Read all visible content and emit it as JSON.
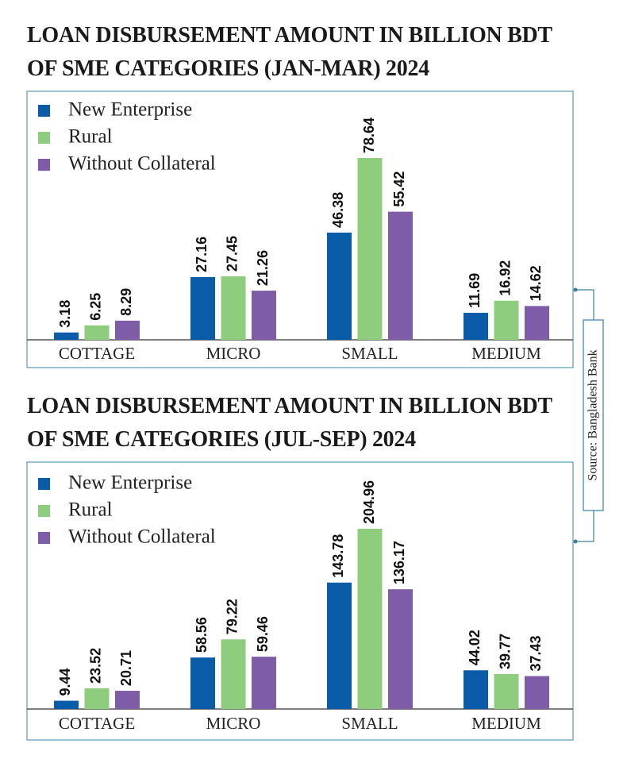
{
  "chart_data": [
    {
      "type": "bar",
      "title": "LOAN DISBURSEMENT AMOUNT IN BILLION BDT OF SME CATEGORIES (JAN-MAR) 2024",
      "categories": [
        "COTTAGE",
        "MICRO",
        "SMALL",
        "MEDIUM"
      ],
      "series": [
        {
          "name": "New Enterprise",
          "color": "#0b5ca8",
          "values": [
            3.18,
            27.16,
            46.38,
            11.69
          ]
        },
        {
          "name": "Rural",
          "color": "#8fcd7e",
          "values": [
            6.25,
            27.45,
            78.64,
            16.92
          ]
        },
        {
          "name": "Without Collateral",
          "color": "#7f5ca8",
          "values": [
            8.29,
            21.26,
            55.42,
            14.62
          ]
        }
      ]
    },
    {
      "type": "bar",
      "title": "LOAN DISBURSEMENT AMOUNT IN BILLION BDT OF SME CATEGORIES (JUL-SEP) 2024",
      "categories": [
        "COTTAGE",
        "MICRO",
        "SMALL",
        "MEDIUM"
      ],
      "series": [
        {
          "name": "New Enterprise",
          "color": "#0b5ca8",
          "values": [
            9.44,
            58.56,
            143.78,
            44.02
          ]
        },
        {
          "name": "Rural",
          "color": "#8fcd7e",
          "values": [
            23.52,
            79.22,
            204.96,
            39.77
          ]
        },
        {
          "name": "Without Collateral",
          "color": "#7f5ca8",
          "values": [
            20.71,
            59.46,
            136.17,
            37.43
          ]
        }
      ]
    }
  ],
  "source": "Source: Bangladesh Bank"
}
